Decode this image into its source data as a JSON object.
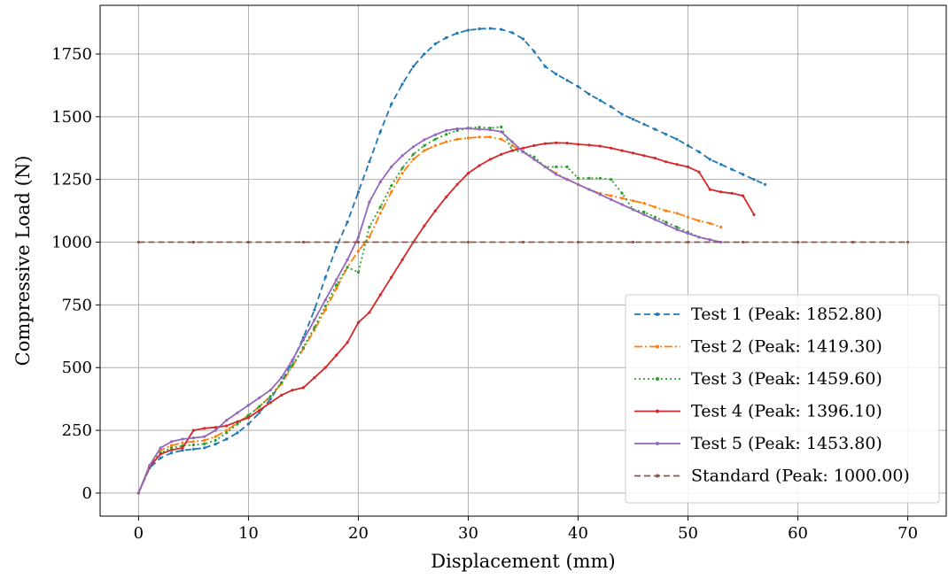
{
  "chart_data": {
    "type": "line",
    "title": "",
    "xlabel": "Displacement (mm)",
    "ylabel": "Compressive Load (N)",
    "xlim": [
      -3.5,
      73.5
    ],
    "ylim": [
      -92,
      1944
    ],
    "xticks": [
      0,
      10,
      20,
      30,
      40,
      50,
      60,
      70
    ],
    "yticks": [
      0,
      250,
      500,
      750,
      1000,
      1250,
      1500,
      1750
    ],
    "grid": true,
    "legend_position": "lower-right",
    "series": [
      {
        "name": "Test 1 (Peak: 1852.80)",
        "color": "#1f77b4",
        "dash": "dashed",
        "x": [
          0,
          1,
          2,
          3,
          4,
          5,
          6,
          7,
          8,
          9,
          10,
          11,
          12,
          13,
          14,
          15,
          16,
          17,
          18,
          19,
          20,
          21,
          22,
          23,
          24,
          25,
          26,
          27,
          28,
          29,
          30,
          31,
          32,
          33,
          34,
          35,
          36,
          37,
          38,
          39,
          40,
          41,
          42,
          43,
          44,
          45,
          46,
          47,
          48,
          49,
          50,
          51,
          52,
          53,
          54,
          55,
          56,
          57
        ],
        "y": [
          0,
          100,
          140,
          160,
          170,
          175,
          180,
          195,
          215,
          240,
          275,
          320,
          375,
          440,
          525,
          620,
          730,
          860,
          980,
          1080,
          1200,
          1320,
          1440,
          1550,
          1630,
          1700,
          1750,
          1790,
          1815,
          1833,
          1845,
          1850,
          1852,
          1848,
          1835,
          1810,
          1760,
          1700,
          1670,
          1645,
          1620,
          1590,
          1565,
          1540,
          1510,
          1490,
          1470,
          1450,
          1430,
          1410,
          1385,
          1360,
          1330,
          1310,
          1290,
          1270,
          1250,
          1230
        ]
      },
      {
        "name": "Test 2 (Peak: 1419.30)",
        "color": "#ff7f0e",
        "dash": "dashdot",
        "x": [
          0,
          1,
          2,
          3,
          4,
          5,
          6,
          7,
          8,
          9,
          10,
          11,
          12,
          13,
          14,
          15,
          16,
          17,
          18,
          19,
          20,
          21,
          22,
          23,
          24,
          25,
          26,
          27,
          28,
          29,
          30,
          31,
          32,
          33,
          34,
          35,
          36,
          37,
          38,
          39,
          40,
          41,
          42,
          43,
          44,
          45,
          46,
          47,
          48,
          49,
          50,
          51,
          52,
          53
        ],
        "y": [
          0,
          110,
          170,
          190,
          200,
          205,
          210,
          225,
          250,
          280,
          310,
          345,
          385,
          435,
          505,
          575,
          650,
          730,
          815,
          900,
          965,
          1020,
          1115,
          1200,
          1275,
          1330,
          1365,
          1385,
          1400,
          1410,
          1415,
          1419,
          1419,
          1410,
          1385,
          1360,
          1330,
          1300,
          1275,
          1250,
          1230,
          1210,
          1195,
          1185,
          1175,
          1165,
          1155,
          1140,
          1125,
          1115,
          1100,
          1085,
          1075,
          1060
        ]
      },
      {
        "name": "Test 3 (Peak: 1459.60)",
        "color": "#2ca02c",
        "dash": "dotted",
        "x": [
          0,
          1,
          2,
          3,
          4,
          5,
          6,
          7,
          8,
          9,
          10,
          11,
          12,
          13,
          14,
          15,
          16,
          17,
          18,
          19,
          20,
          21,
          22,
          23,
          24,
          25,
          26,
          27,
          28,
          29,
          30,
          31,
          32,
          33,
          34,
          35,
          36,
          37,
          38,
          39,
          40,
          41,
          42,
          43,
          44,
          45,
          46,
          47,
          48,
          49,
          50,
          51,
          52,
          53
        ],
        "y": [
          0,
          105,
          160,
          180,
          188,
          192,
          196,
          210,
          240,
          275,
          310,
          345,
          385,
          440,
          510,
          580,
          660,
          745,
          830,
          900,
          880,
          1060,
          1140,
          1225,
          1295,
          1350,
          1385,
          1410,
          1430,
          1445,
          1455,
          1458,
          1455,
          1459,
          1365,
          1360,
          1340,
          1300,
          1300,
          1300,
          1255,
          1255,
          1255,
          1250,
          1195,
          1130,
          1120,
          1100,
          1080,
          1060,
          1040,
          1020,
          1010,
          1000
        ]
      },
      {
        "name": "Test 4 (Peak: 1396.10)",
        "color": "#d62728",
        "dash": "solid",
        "x": [
          0,
          1,
          2,
          3,
          4,
          5,
          6,
          7,
          8,
          9,
          10,
          11,
          12,
          13,
          14,
          15,
          16,
          17,
          18,
          19,
          20,
          21,
          22,
          23,
          24,
          25,
          26,
          27,
          28,
          29,
          30,
          31,
          32,
          33,
          34,
          35,
          36,
          37,
          38,
          39,
          40,
          41,
          42,
          43,
          44,
          45,
          46,
          47,
          48,
          49,
          50,
          51,
          52,
          53,
          54,
          55,
          56
        ],
        "y": [
          0,
          105,
          155,
          172,
          180,
          250,
          258,
          262,
          268,
          285,
          300,
          330,
          360,
          390,
          410,
          420,
          460,
          500,
          550,
          600,
          680,
          720,
          790,
          860,
          930,
          1000,
          1065,
          1125,
          1180,
          1230,
          1275,
          1305,
          1330,
          1350,
          1365,
          1375,
          1385,
          1393,
          1396,
          1395,
          1390,
          1387,
          1383,
          1375,
          1365,
          1355,
          1345,
          1335,
          1320,
          1310,
          1300,
          1280,
          1210,
          1200,
          1195,
          1185,
          1110
        ]
      },
      {
        "name": "Test 5 (Peak: 1453.80)",
        "color": "#9467bd",
        "dash": "solid",
        "x": [
          0,
          1,
          2,
          3,
          4,
          5,
          6,
          7,
          8,
          9,
          10,
          11,
          12,
          13,
          14,
          15,
          16,
          17,
          18,
          19,
          20,
          21,
          22,
          23,
          24,
          25,
          26,
          27,
          28,
          29,
          30,
          31,
          32,
          33,
          34,
          35,
          36,
          37,
          38,
          39,
          40,
          41,
          42,
          43,
          44,
          45,
          46,
          47,
          48,
          49,
          50,
          51,
          52,
          53
        ],
        "y": [
          0,
          110,
          180,
          205,
          215,
          220,
          225,
          250,
          290,
          320,
          350,
          380,
          410,
          460,
          530,
          610,
          690,
          770,
          850,
          930,
          1020,
          1160,
          1240,
          1300,
          1345,
          1380,
          1408,
          1428,
          1445,
          1452,
          1453,
          1450,
          1448,
          1440,
          1400,
          1360,
          1330,
          1300,
          1270,
          1250,
          1230,
          1210,
          1190,
          1170,
          1150,
          1130,
          1110,
          1090,
          1070,
          1050,
          1035,
          1020,
          1010,
          1000
        ]
      },
      {
        "name": "Standard (Peak: 1000.00)",
        "color": "#8c564b",
        "dash": "dashed",
        "x": [
          0,
          5,
          10,
          15,
          20,
          25,
          30,
          35,
          40,
          45,
          50,
          55,
          60,
          65,
          70
        ],
        "y": [
          1000,
          1000,
          1000,
          1000,
          1000,
          1000,
          1000,
          1000,
          1000,
          1000,
          1000,
          1000,
          1000,
          1000,
          1000
        ]
      }
    ]
  }
}
